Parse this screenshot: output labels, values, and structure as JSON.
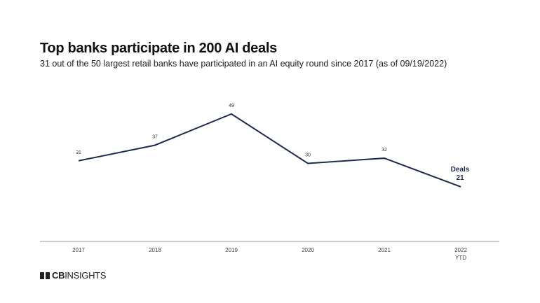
{
  "title": "Top banks participate in 200 AI deals",
  "subtitle": "31 out of the 50 largest retail banks have participated in an AI equity round since 2017 (as of 09/19/2022)",
  "logo": {
    "bold": "CB",
    "rest": "INSIGHTS"
  },
  "chart_data": {
    "type": "line",
    "categories": [
      "2017",
      "2018",
      "2019",
      "2020",
      "2021",
      "2022"
    ],
    "category_sublabels": [
      "",
      "",
      "",
      "",
      "",
      "YTD"
    ],
    "series": [
      {
        "name": "Deals",
        "values": [
          31,
          37,
          49,
          30,
          32,
          21
        ]
      }
    ],
    "ylim": [
      0,
      60
    ],
    "grid": false,
    "line_color": "#1e2a50",
    "legend": "inline label at last point"
  }
}
